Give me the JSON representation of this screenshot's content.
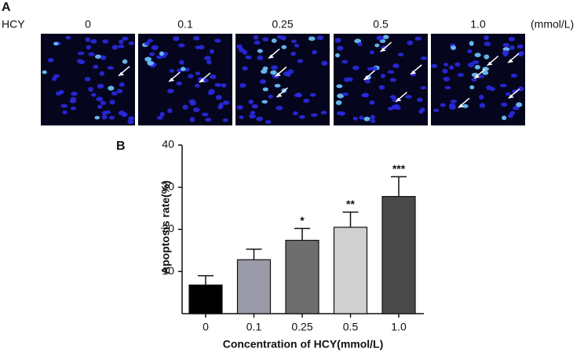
{
  "panel_a": {
    "label": "A",
    "row_label": "HCY",
    "columns": [
      "0",
      "0.1",
      "0.25",
      "0.5",
      "1.0"
    ],
    "unit": "(mmol/L)"
  },
  "chart_data": {
    "type": "bar",
    "panel_label": "B",
    "y_label": "Apoptosis rate(%)",
    "x_label": "Concentration of HCY(mmol/L)",
    "categories": [
      "0",
      "0.1",
      "0.25",
      "0.5",
      "1.0"
    ],
    "values": [
      6.8,
      12.8,
      17.4,
      20.5,
      27.8
    ],
    "errors": [
      2.2,
      2.5,
      2.8,
      3.6,
      4.7
    ],
    "significance": [
      null,
      null,
      "*",
      "**",
      "***"
    ],
    "colors": [
      "#000000",
      "#9a9aa8",
      "#6e6e6e",
      "#d0d0d0",
      "#4a4a4a"
    ],
    "ylim": [
      0,
      40
    ],
    "yticks": [
      10,
      20,
      30,
      40
    ]
  }
}
